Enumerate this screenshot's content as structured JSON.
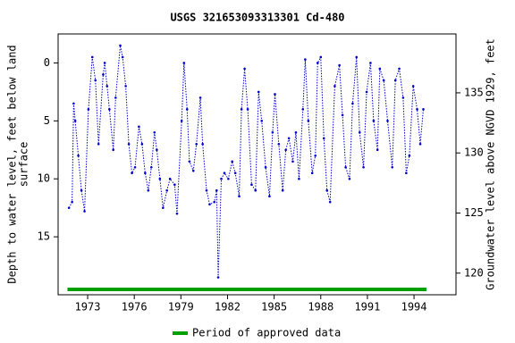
{
  "chart_data": {
    "type": "line",
    "title": "USGS 321653093313301 Cd-480",
    "y_label": [
      "Depth to water level, feet below land",
      "surface"
    ],
    "y2_label": "Groundwater level above NGVD 1929, feet",
    "x": [
      1971.8,
      1972.0,
      1972.1,
      1972.2,
      1972.4,
      1972.6,
      1972.8,
      1973.05,
      1973.3,
      1973.5,
      1973.7,
      1974.0,
      1974.1,
      1974.25,
      1974.4,
      1974.65,
      1974.8,
      1975.1,
      1975.25,
      1975.45,
      1975.65,
      1975.85,
      1976.05,
      1976.3,
      1976.5,
      1976.7,
      1976.9,
      1977.1,
      1977.3,
      1977.45,
      1977.65,
      1977.85,
      1978.1,
      1978.3,
      1978.6,
      1978.75,
      1979.05,
      1979.2,
      1979.4,
      1979.55,
      1979.8,
      1980.0,
      1980.25,
      1980.4,
      1980.65,
      1980.85,
      1981.15,
      1981.3,
      1981.4,
      1981.6,
      1981.8,
      1982.05,
      1982.3,
      1982.5,
      1982.75,
      1982.9,
      1983.1,
      1983.3,
      1983.55,
      1983.8,
      1984.0,
      1984.2,
      1984.45,
      1984.7,
      1984.9,
      1985.05,
      1985.3,
      1985.55,
      1985.75,
      1985.95,
      1986.2,
      1986.4,
      1986.6,
      1986.85,
      1987.0,
      1987.2,
      1987.45,
      1987.65,
      1987.8,
      1988.0,
      1988.2,
      1988.4,
      1988.6,
      1988.9,
      1989.2,
      1989.4,
      1989.6,
      1989.85,
      1990.05,
      1990.3,
      1990.5,
      1990.75,
      1990.95,
      1991.2,
      1991.4,
      1991.65,
      1991.8,
      1992.05,
      1992.3,
      1992.6,
      1992.8,
      1993.05,
      1993.3,
      1993.5,
      1993.7,
      1993.95,
      1994.2,
      1994.4,
      1994.6
    ],
    "series": [
      {
        "color": "#0000cc",
        "values": [
          12.5,
          12,
          3.5,
          5,
          8,
          11,
          12.8,
          4,
          -0.5,
          1.5,
          7,
          1,
          0,
          2,
          4,
          7.5,
          3,
          -1.5,
          -0.5,
          2,
          7,
          9.5,
          9,
          5.5,
          7,
          9.5,
          11,
          9,
          6,
          7.5,
          10,
          12.5,
          11,
          10,
          10.5,
          13,
          5,
          0,
          4,
          8.5,
          9.3,
          7,
          3,
          7,
          11,
          12.2,
          12,
          11,
          18.5,
          10,
          9.5,
          10,
          8.5,
          9.5,
          11.5,
          4,
          0.5,
          4,
          10.5,
          11,
          2.5,
          5,
          9,
          11.5,
          6,
          2.7,
          7,
          11,
          7.5,
          6.5,
          8.5,
          6,
          10,
          4,
          -0.3,
          5,
          9.5,
          8,
          0,
          -0.5,
          6.5,
          11,
          12,
          2,
          0.2,
          4.5,
          9,
          10,
          3.5,
          -0.5,
          6,
          9,
          2.5,
          0,
          5,
          7.5,
          0.5,
          1.5,
          5,
          9,
          1.5,
          0.5,
          3,
          9.5,
          8,
          2,
          4,
          7,
          4
        ]
      }
    ],
    "xlim": [
      1971.1,
      1996.7
    ],
    "xticks": [
      1973,
      1976,
      1979,
      1982,
      1985,
      1988,
      1991,
      1994
    ],
    "ylim": [
      -2.5,
      20
    ],
    "yticks": [
      0,
      5,
      10,
      15
    ],
    "y_inverted": true,
    "y2lim": [
      118.2,
      139.9
    ],
    "y2ticks": [
      120,
      125,
      130,
      135
    ],
    "approved_period": {
      "range": [
        1971.7,
        1994.8
      ],
      "color": "#00a000",
      "label": "Period of approved data"
    }
  }
}
